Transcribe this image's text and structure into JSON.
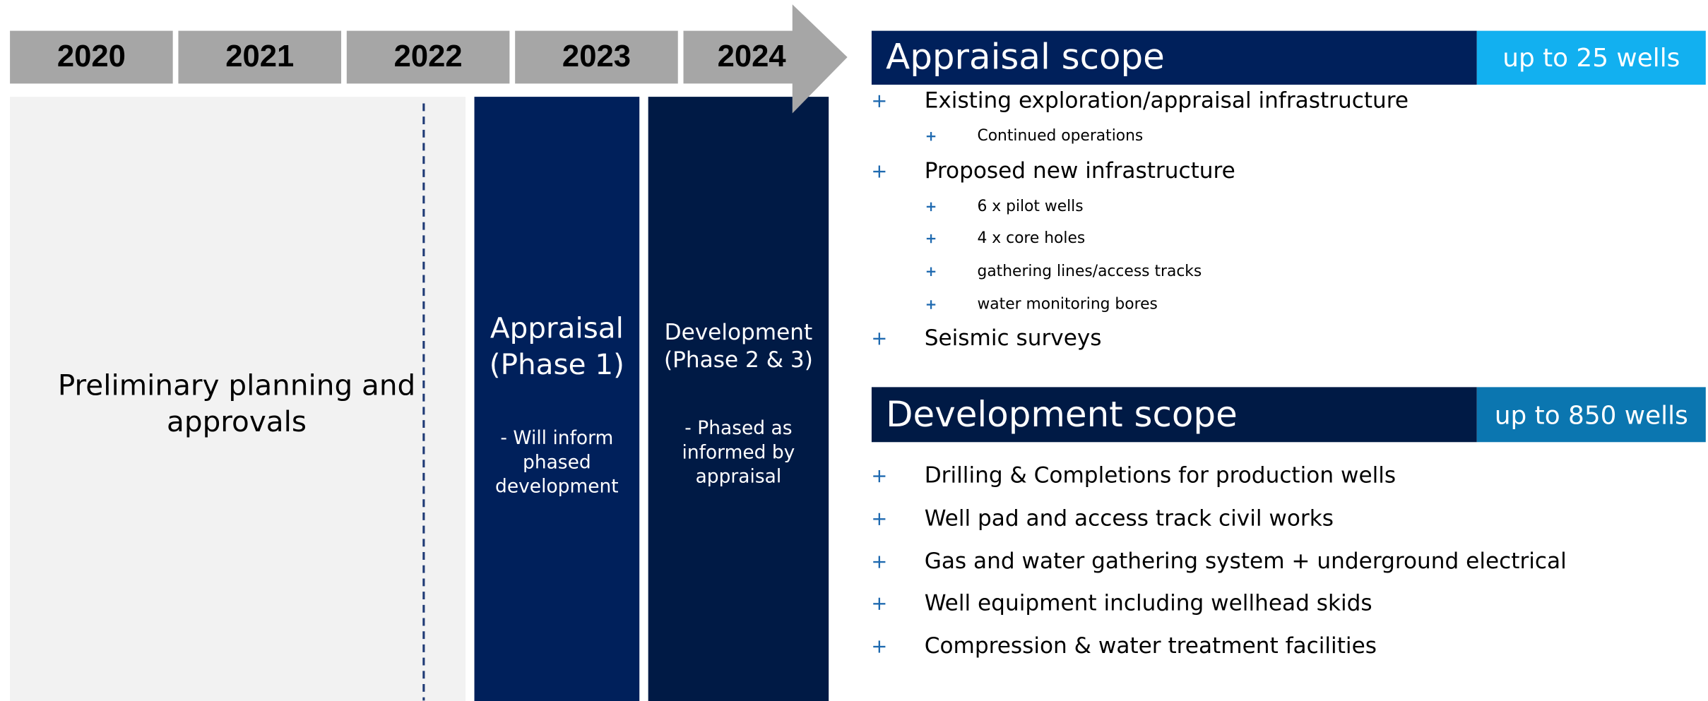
{
  "timeline": {
    "years": [
      "2020",
      "2021",
      "2022",
      "2023",
      "2024"
    ]
  },
  "phases": {
    "preliminary": {
      "lines": [
        "Preliminary planning and",
        "approvals"
      ]
    },
    "appraisal": {
      "title": [
        "Appraisal",
        "(Phase 1)"
      ],
      "note": [
        "- Will inform",
        "phased",
        "development"
      ]
    },
    "development": {
      "title": [
        "Development",
        "(Phase 2 & 3)"
      ],
      "note": [
        "- Phased as",
        "informed by",
        "appraisal"
      ]
    }
  },
  "appraisal_scope": {
    "title": "Appraisal scope",
    "badge": "up to 25 wells",
    "items": [
      {
        "text": "Existing exploration/appraisal infrastructure",
        "level": 0
      },
      {
        "text": "Continued operations",
        "level": 1
      },
      {
        "text": "Proposed new infrastructure",
        "level": 0
      },
      {
        "text": "6 x pilot wells",
        "level": 1
      },
      {
        "text": "4 x core holes",
        "level": 1
      },
      {
        "text": "gathering lines/access tracks",
        "level": 1
      },
      {
        "text": "water monitoring bores",
        "level": 1
      },
      {
        "text": "Seismic surveys",
        "level": 0
      }
    ]
  },
  "development_scope": {
    "title": "Development scope",
    "badge": "up to 850 wells",
    "items": [
      {
        "text": "Drilling & Completions for production wells",
        "level": 0
      },
      {
        "text": "Well pad and access track civil works",
        "level": 0
      },
      {
        "text": "Gas and water gathering system + underground electrical",
        "level": 0
      },
      {
        "text": "Well equipment including wellhead skids",
        "level": 0
      },
      {
        "text": "Compression & water treatment facilities",
        "level": 0
      }
    ]
  }
}
